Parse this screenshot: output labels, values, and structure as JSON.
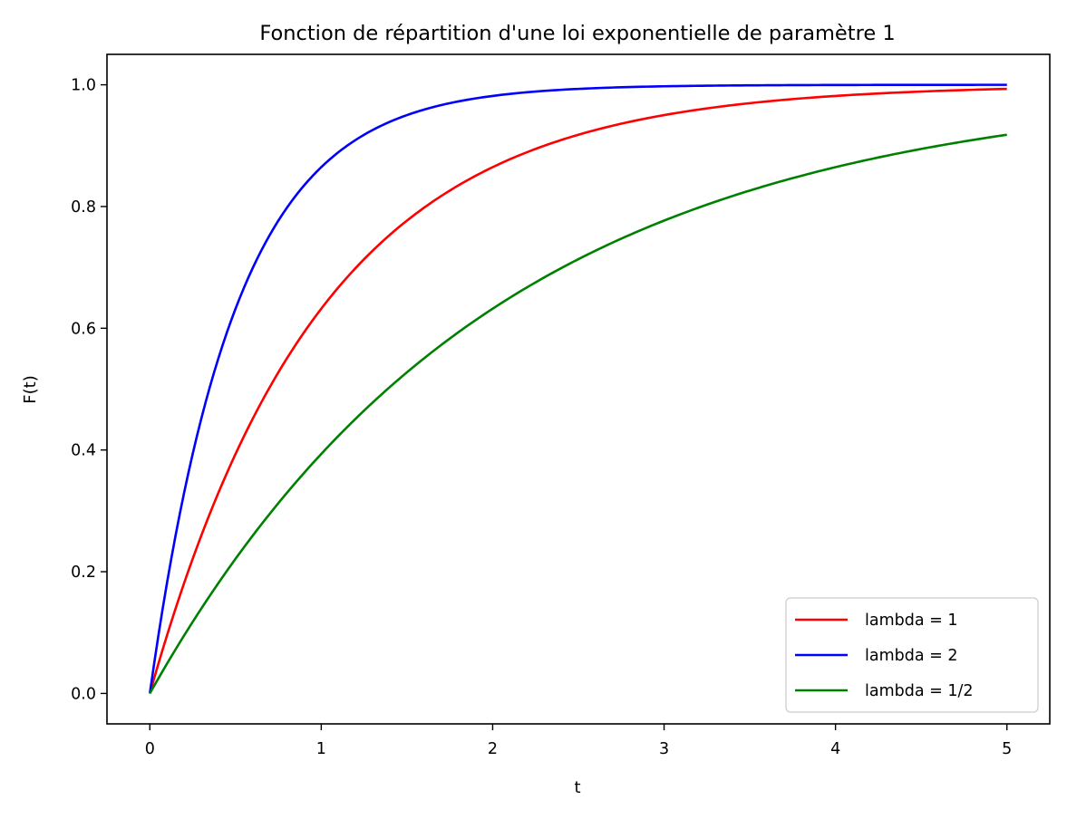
{
  "chart_data": {
    "type": "line",
    "title": "Fonction de répartition d'une loi exponentielle de paramètre 1",
    "xlabel": "t",
    "ylabel": "F(t)",
    "xlim": [
      -0.25,
      5.25
    ],
    "ylim": [
      -0.05,
      1.05
    ],
    "xticks": [
      0,
      1,
      2,
      3,
      4,
      5
    ],
    "xtick_labels": [
      "0",
      "1",
      "2",
      "3",
      "4",
      "5"
    ],
    "yticks": [
      0.0,
      0.2,
      0.4,
      0.6,
      0.8,
      1.0
    ],
    "ytick_labels": [
      "0.0",
      "0.2",
      "0.4",
      "0.6",
      "0.8",
      "1.0"
    ],
    "grid": false,
    "legend_position": "lower-right",
    "x_domain": [
      0,
      5
    ],
    "series": [
      {
        "name": "lambda = 1",
        "color": "#ff0000",
        "lambda": 1,
        "x": [
          0,
          0.25,
          0.5,
          0.75,
          1,
          1.5,
          2,
          2.5,
          3,
          3.5,
          4,
          4.5,
          5
        ],
        "values": [
          0,
          0.221,
          0.393,
          0.528,
          0.632,
          0.777,
          0.865,
          0.918,
          0.95,
          0.97,
          0.982,
          0.989,
          0.993
        ]
      },
      {
        "name": "lambda = 2",
        "color": "#0000ff",
        "lambda": 2,
        "x": [
          0,
          0.25,
          0.5,
          0.75,
          1,
          1.5,
          2,
          2.5,
          3,
          3.5,
          4,
          4.5,
          5
        ],
        "values": [
          0,
          0.393,
          0.632,
          0.777,
          0.865,
          0.95,
          0.982,
          0.993,
          0.998,
          0.999,
          1.0,
          1.0,
          1.0
        ]
      },
      {
        "name": "lambda = 1/2",
        "color": "#008000",
        "lambda": 0.5,
        "x": [
          0,
          0.25,
          0.5,
          0.75,
          1,
          1.5,
          2,
          2.5,
          3,
          3.5,
          4,
          4.5,
          5
        ],
        "values": [
          0,
          0.118,
          0.221,
          0.313,
          0.393,
          0.528,
          0.632,
          0.713,
          0.777,
          0.826,
          0.865,
          0.895,
          0.918
        ]
      }
    ]
  }
}
